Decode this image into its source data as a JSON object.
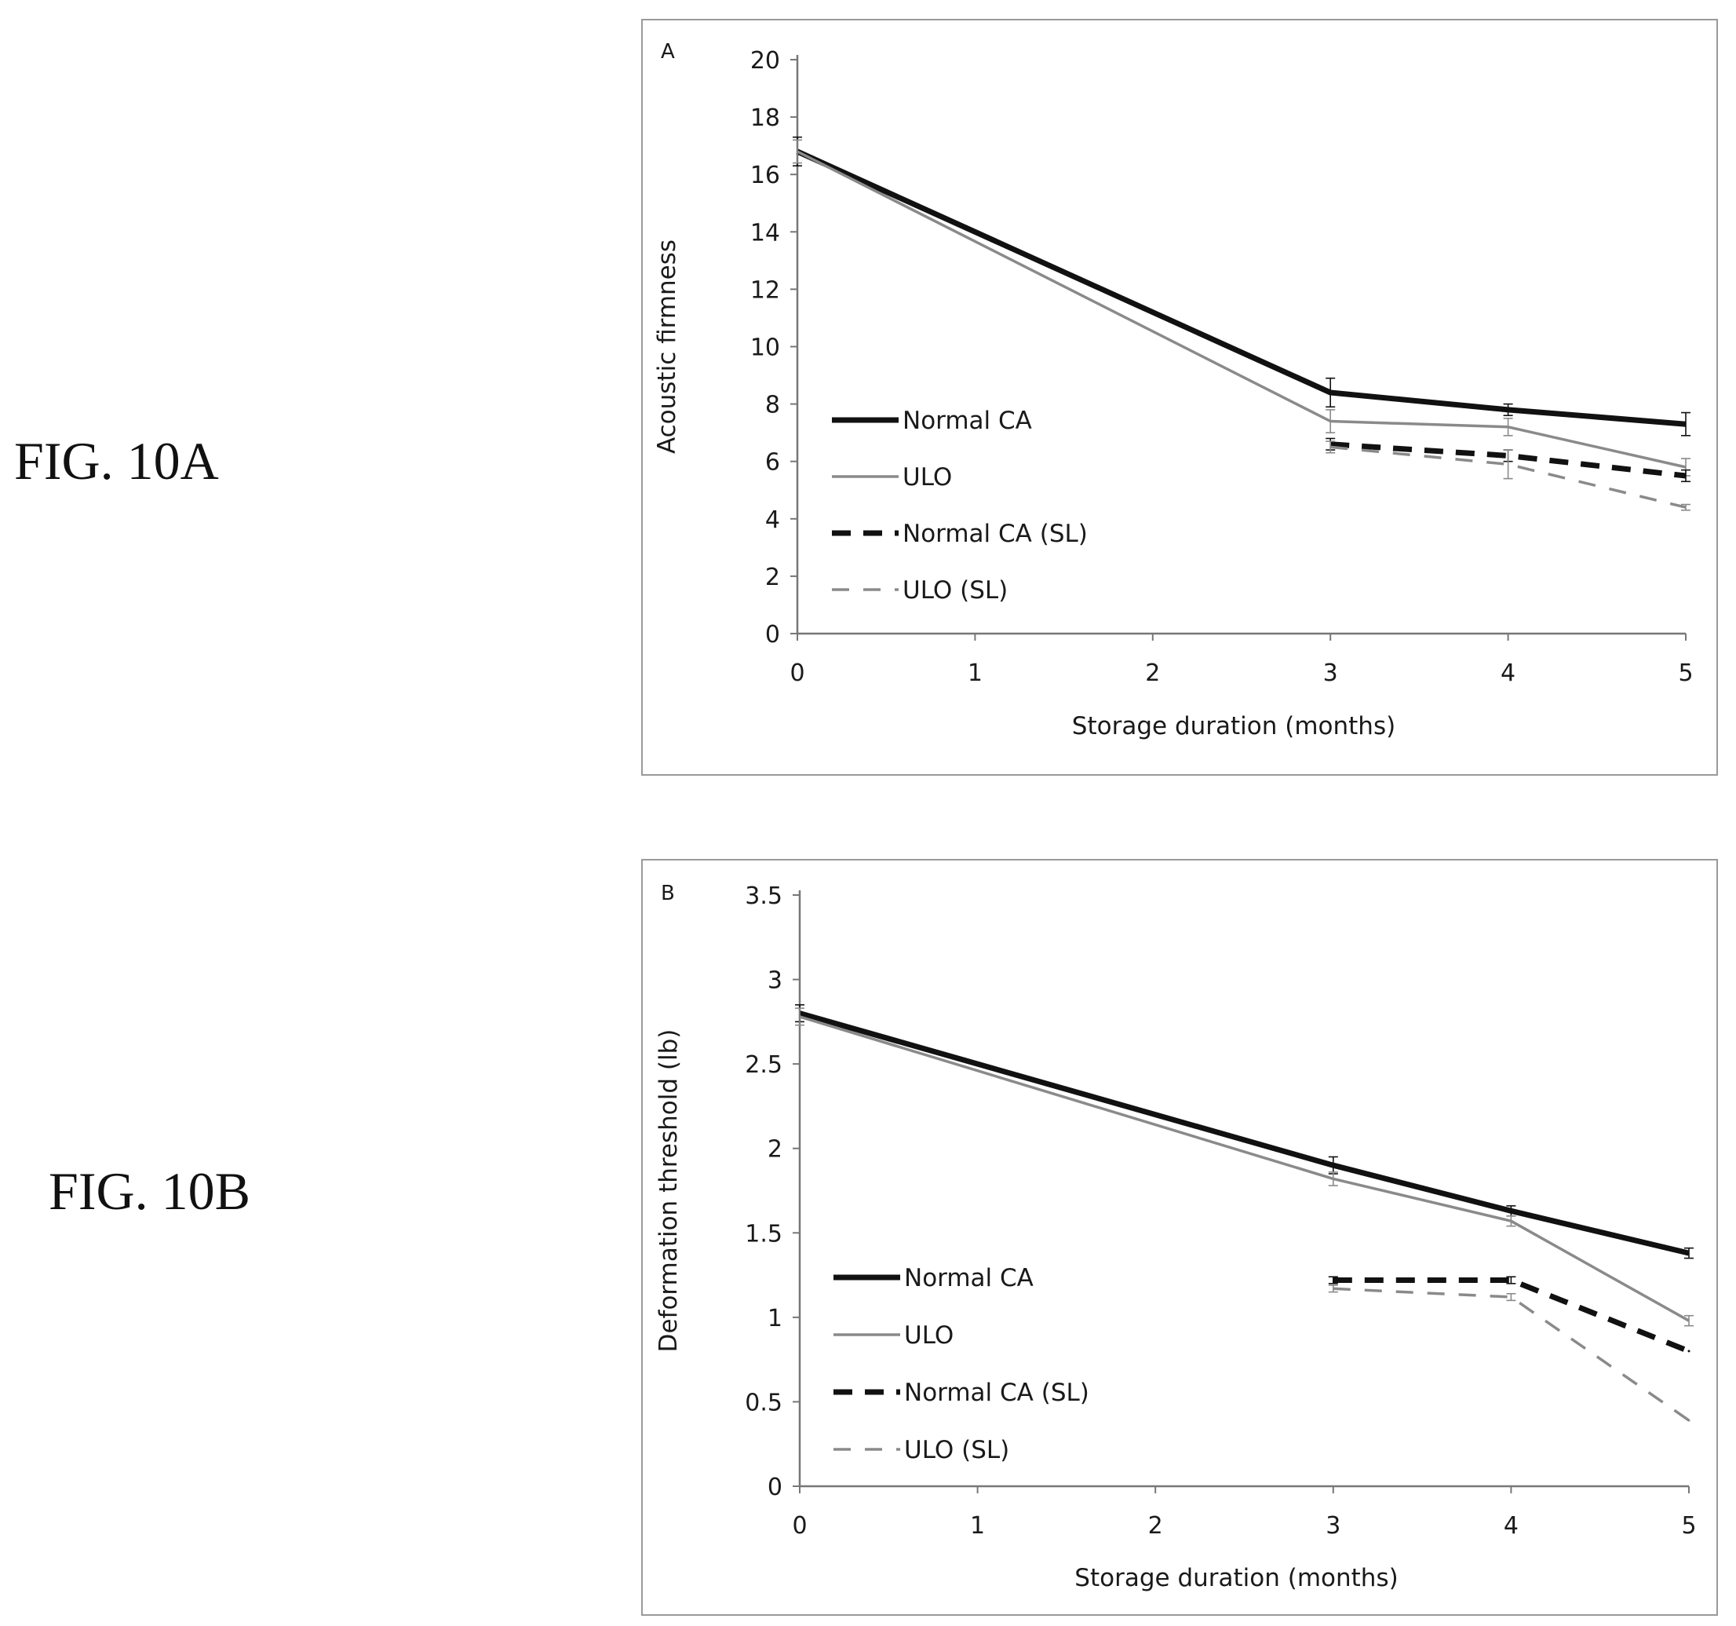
{
  "figure_labels": {
    "a": "FIG. 10A",
    "b": "FIG. 10B"
  },
  "chart_data": [
    {
      "type": "line",
      "panel": "A",
      "title": "",
      "xlabel": "Storage duration (months)",
      "ylabel": "Acoustic firmness",
      "xlim": [
        0,
        5
      ],
      "ylim": [
        0,
        20
      ],
      "xticks": [
        0,
        1,
        2,
        3,
        4,
        5
      ],
      "yticks": [
        0,
        2,
        4,
        6,
        8,
        10,
        12,
        14,
        16,
        18,
        20
      ],
      "grid": false,
      "legend_position": "left",
      "series": [
        {
          "name": "Normal CA",
          "style": "solid-bold",
          "color": "#111111",
          "x": [
            0,
            3,
            4,
            5
          ],
          "y": [
            16.8,
            8.4,
            7.8,
            7.3
          ],
          "err": [
            0.5,
            0.5,
            0.2,
            0.4
          ]
        },
        {
          "name": "ULO",
          "style": "solid-thin",
          "color": "#8a8a8a",
          "x": [
            0,
            3,
            4,
            5
          ],
          "y": [
            16.8,
            7.4,
            7.2,
            5.8
          ],
          "err": [
            0.4,
            0.4,
            0.3,
            0.3
          ]
        },
        {
          "name": "Normal CA (SL)",
          "style": "dashed-bold",
          "color": "#111111",
          "x": [
            3,
            4,
            5
          ],
          "y": [
            6.6,
            6.2,
            5.5
          ],
          "err": [
            0.2,
            0.2,
            0.2
          ]
        },
        {
          "name": "ULO (SL)",
          "style": "dashed-thin",
          "color": "#8a8a8a",
          "x": [
            3,
            4,
            5
          ],
          "y": [
            6.5,
            5.9,
            4.4
          ],
          "err": [
            0.2,
            0.5,
            0.1
          ]
        }
      ]
    },
    {
      "type": "line",
      "panel": "B",
      "title": "",
      "xlabel": "Storage duration (months)",
      "ylabel": "Deformation threshold (lb)",
      "xlim": [
        0,
        5
      ],
      "ylim": [
        0,
        3.5
      ],
      "xticks": [
        0,
        1,
        2,
        3,
        4,
        5
      ],
      "yticks": [
        0,
        0.5,
        1,
        1.5,
        2,
        2.5,
        3,
        3.5
      ],
      "grid": false,
      "legend_position": "left",
      "series": [
        {
          "name": "Normal CA",
          "style": "solid-bold",
          "color": "#111111",
          "x": [
            0,
            3,
            4,
            5
          ],
          "y": [
            2.8,
            1.9,
            1.63,
            1.38
          ],
          "err": [
            0.05,
            0.05,
            0.03,
            0.03
          ]
        },
        {
          "name": "ULO",
          "style": "solid-thin",
          "color": "#8a8a8a",
          "x": [
            0,
            3,
            4,
            5
          ],
          "y": [
            2.78,
            1.82,
            1.57,
            0.98
          ],
          "err": [
            0.05,
            0.04,
            0.03,
            0.03
          ]
        },
        {
          "name": "Normal CA (SL)",
          "style": "dashed-bold",
          "color": "#111111",
          "x": [
            3,
            4,
            5
          ],
          "y": [
            1.22,
            1.22,
            0.8
          ],
          "err": [
            0.02,
            0.02,
            0.0
          ]
        },
        {
          "name": "ULO (SL)",
          "style": "dashed-thin",
          "color": "#8a8a8a",
          "x": [
            3,
            4,
            5
          ],
          "y": [
            1.17,
            1.12,
            0.39
          ],
          "err": [
            0.02,
            0.02,
            0.0
          ]
        }
      ]
    }
  ]
}
